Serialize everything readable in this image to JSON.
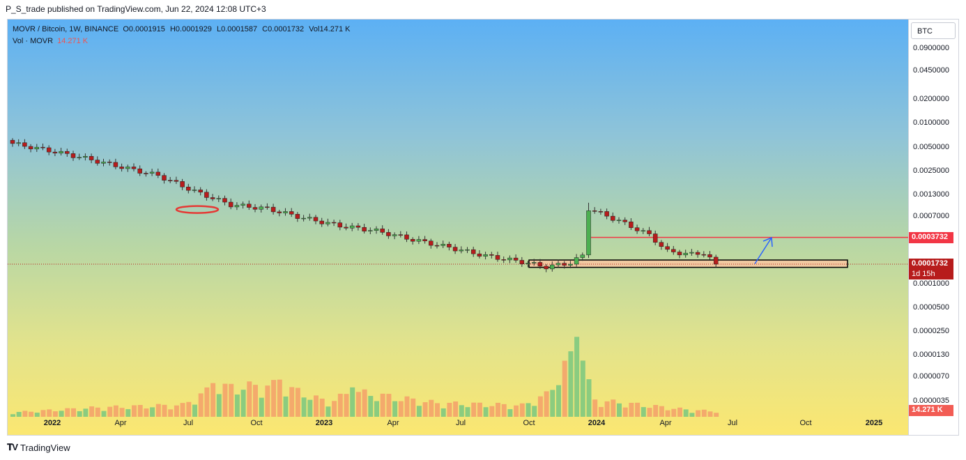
{
  "publisher_line": "P_S_trade published on TradingView.com, Jun 22, 2024 12:08 UTC+3",
  "brand": "TradingView",
  "legend": {
    "symbol": "MOVR / Bitcoin, 1W, BINANCE",
    "o_label": "O",
    "o": "0.0001915",
    "h_label": "H",
    "h": "0.0001929",
    "l_label": "L",
    "l": "0.0001587",
    "c_label": "C",
    "c": "0.0001732",
    "vol_label": "Vol",
    "vol": "14.271 K",
    "vol_series": "Vol · MOVR",
    "vol_series_value": "14.271 K"
  },
  "currency_button": "BTC",
  "colors": {
    "up": "#4caf50",
    "down": "#b71c1c",
    "resistance": "#f23645",
    "arrow": "#2962ff",
    "zone": "#f0c9a0",
    "ellipse": "#e53935"
  },
  "chart_data": {
    "type": "candlestick",
    "y_scale": "log",
    "y_ticks": [
      "0.0900000",
      "0.0450000",
      "0.0200000",
      "0.0100000",
      "0.0050000",
      "0.0025000",
      "0.0013000",
      "0.0007000",
      "0.0003732",
      "0.0001732",
      "0.0001000",
      "0.0000500",
      "0.0000250",
      "0.0000130",
      "0.0000070",
      "0.0000035"
    ],
    "x_ticks": [
      {
        "label": "2022",
        "year": true
      },
      {
        "label": "Apr",
        "year": false
      },
      {
        "label": "Jul",
        "year": false
      },
      {
        "label": "Oct",
        "year": false
      },
      {
        "label": "2023",
        "year": true
      },
      {
        "label": "Apr",
        "year": false
      },
      {
        "label": "Jul",
        "year": false
      },
      {
        "label": "Oct",
        "year": false
      },
      {
        "label": "2024",
        "year": true
      },
      {
        "label": "Apr",
        "year": false
      },
      {
        "label": "Jul",
        "year": false
      },
      {
        "label": "Oct",
        "year": false
      },
      {
        "label": "2025",
        "year": true
      }
    ],
    "last_price_label": "0.0001732",
    "countdown_label": "1d 15h",
    "resistance_label": "0.0003732",
    "volume_label": "14.271 K",
    "resistance_level": 0.0003732,
    "support_zone": [
      0.000158,
      0.000195
    ],
    "last_price": 0.0001732,
    "price_path": [
      [
        0,
        0.0055
      ],
      [
        6,
        0.0045
      ],
      [
        12,
        0.0036
      ],
      [
        18,
        0.0028
      ],
      [
        24,
        0.0022
      ],
      [
        30,
        0.0014
      ],
      [
        36,
        0.00095
      ],
      [
        42,
        0.00085
      ],
      [
        48,
        0.00065
      ],
      [
        54,
        0.00052
      ],
      [
        60,
        0.00045
      ],
      [
        66,
        0.00035
      ],
      [
        72,
        0.00028
      ],
      [
        78,
        0.00022
      ],
      [
        84,
        0.000185
      ],
      [
        88,
        0.00016
      ],
      [
        92,
        0.00018
      ],
      [
        94,
        0.00022
      ],
      [
        95,
        0.00085
      ],
      [
        100,
        0.0006
      ],
      [
        105,
        0.0004
      ],
      [
        108,
        0.00025
      ],
      [
        112,
        0.00023
      ],
      [
        114,
        0.00024
      ],
      [
        116,
        0.000173
      ]
    ],
    "volume_pattern": [
      [
        0,
        1.2
      ],
      [
        14,
        2.5
      ],
      [
        28,
        3.2
      ],
      [
        33,
        7.8
      ],
      [
        44,
        8.6
      ],
      [
        52,
        3.9
      ],
      [
        56,
        6.8
      ],
      [
        70,
        3.7
      ],
      [
        84,
        3.1
      ],
      [
        88,
        5.9
      ],
      [
        93,
        18.5
      ],
      [
        94,
        13.0
      ],
      [
        96,
        4.5
      ],
      [
        112,
        1.8
      ],
      [
        116,
        1.5
      ]
    ]
  }
}
